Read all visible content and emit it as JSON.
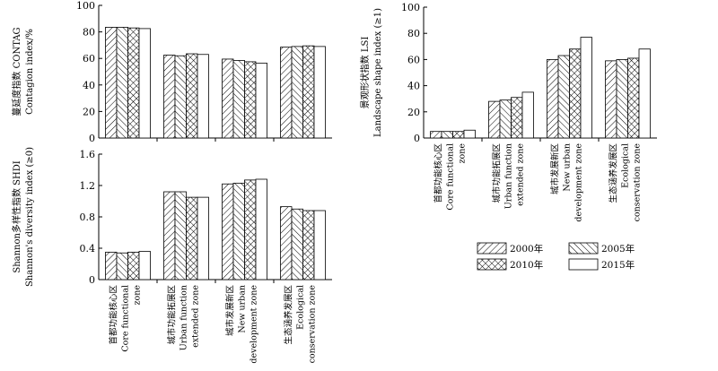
{
  "chart_data": [
    {
      "type": "bar",
      "id": "contag",
      "ylabel_cn": "蔓延度指数 CONTAG",
      "ylabel_en": "Contagion index/%",
      "ylim": [
        0,
        100
      ],
      "yticks": [
        "0",
        "20",
        "40",
        "60",
        "80",
        "100"
      ],
      "categories": [
        "core",
        "urban",
        "new",
        "eco"
      ],
      "series": [
        {
          "name": "2000年",
          "values": [
            83.5,
            62.5,
            59.5,
            68.5
          ]
        },
        {
          "name": "2005年",
          "values": [
            83.5,
            62.0,
            58.5,
            69.0
          ]
        },
        {
          "name": "2010年",
          "values": [
            83.0,
            63.5,
            57.5,
            69.5
          ]
        },
        {
          "name": "2015年",
          "values": [
            82.5,
            63.0,
            56.5,
            69.0
          ]
        }
      ]
    },
    {
      "type": "bar",
      "id": "shdi",
      "ylabel_cn": "Shannon多样性指数 SHDI",
      "ylabel_en": "Shannon's diversity index (≥0)",
      "ylim": [
        0,
        1.6
      ],
      "yticks": [
        "0",
        "0.4",
        "0.8",
        "1.2",
        "1.6"
      ],
      "categories": [
        "core",
        "urban",
        "new",
        "eco"
      ],
      "series": [
        {
          "name": "2000年",
          "values": [
            0.35,
            1.12,
            1.22,
            0.93
          ]
        },
        {
          "name": "2005年",
          "values": [
            0.34,
            1.12,
            1.23,
            0.9
          ]
        },
        {
          "name": "2010年",
          "values": [
            0.35,
            1.05,
            1.27,
            0.88
          ]
        },
        {
          "name": "2015年",
          "values": [
            0.36,
            1.05,
            1.28,
            0.88
          ]
        }
      ]
    },
    {
      "type": "bar",
      "id": "lsi",
      "ylabel_cn": "景观形状指数 LSI",
      "ylabel_en": "Landscape shape index (≥1)",
      "ylim": [
        0,
        100
      ],
      "yticks": [
        "0",
        "20",
        "40",
        "60",
        "80",
        "100"
      ],
      "categories": [
        "core",
        "urban",
        "new",
        "eco"
      ],
      "series": [
        {
          "name": "2000年",
          "values": [
            5,
            28,
            60,
            59
          ]
        },
        {
          "name": "2005年",
          "values": [
            5,
            29,
            63,
            60
          ]
        },
        {
          "name": "2010年",
          "values": [
            5,
            31,
            68,
            61
          ]
        },
        {
          "name": "2015年",
          "values": [
            6,
            35,
            77,
            68
          ]
        }
      ]
    }
  ],
  "category_labels": {
    "core": [
      "首都功能核心区",
      "Core functional",
      "zone"
    ],
    "urban": [
      "城市功能拓展区",
      "Urban function",
      "extended zone"
    ],
    "new": [
      "城市发展新区",
      "New urban",
      "development zone"
    ],
    "eco": [
      "生态涵养发展区",
      "Ecological",
      "conservation zone"
    ]
  },
  "legend": {
    "entries": [
      {
        "label": "2000年",
        "pattern": "diag-right"
      },
      {
        "label": "2005年",
        "pattern": "diag-left"
      },
      {
        "label": "2010年",
        "pattern": "crosshatch"
      },
      {
        "label": "2015年",
        "pattern": "white"
      }
    ]
  }
}
